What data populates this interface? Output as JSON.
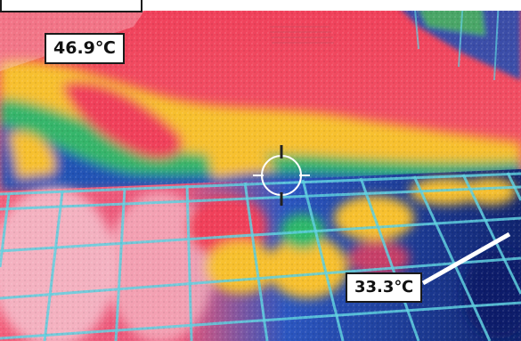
{
  "labels": {
    "hot_reading": "46.9℃",
    "cool_reading": "33.3℃"
  },
  "palette": {
    "hot": "#f23a52",
    "warm": "#f7b92e",
    "mid": "#2fb86a",
    "cool": "#1f4fb5",
    "cold": "#0b1d6a",
    "grout": "#5fd0e0"
  }
}
